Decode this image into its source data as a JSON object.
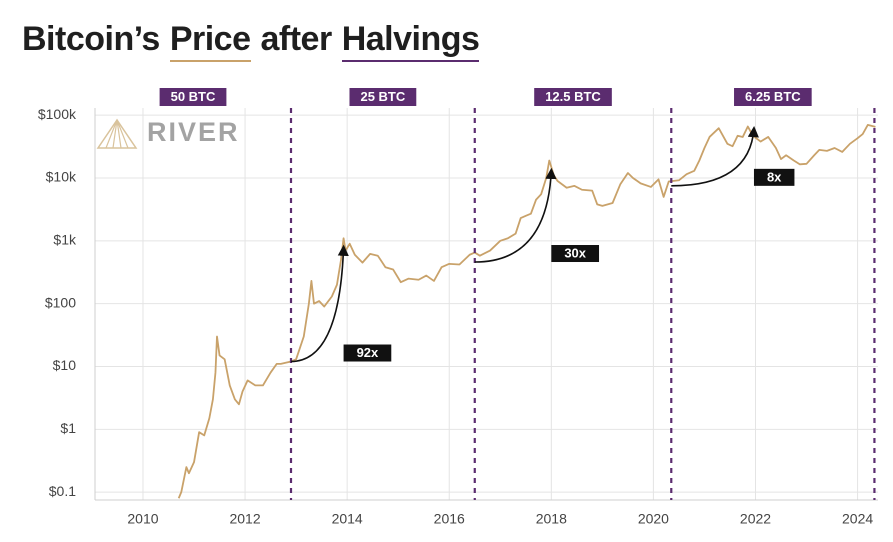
{
  "chart_data": {
    "type": "line",
    "title": [
      "Bitcoin’s",
      "Price",
      "after",
      "Halvings"
    ],
    "logo": "RIVER",
    "color": "#c9a26a",
    "log_y": true,
    "grid": true,
    "x": [
      2010.7,
      2010.75,
      2010.85,
      2010.9,
      2011.0,
      2011.1,
      2011.2,
      2011.3,
      2011.37,
      2011.42,
      2011.45,
      2011.5,
      2011.6,
      2011.7,
      2011.8,
      2011.88,
      2011.95,
      2012.05,
      2012.2,
      2012.35,
      2012.5,
      2012.62,
      2012.7,
      2012.9,
      2013.0,
      2013.15,
      2013.25,
      2013.3,
      2013.35,
      2013.45,
      2013.55,
      2013.7,
      2013.8,
      2013.88,
      2013.93,
      2013.97,
      2014.05,
      2014.15,
      2014.3,
      2014.45,
      2014.6,
      2014.75,
      2014.9,
      2015.05,
      2015.2,
      2015.4,
      2015.55,
      2015.7,
      2015.85,
      2016.0,
      2016.2,
      2016.4,
      2016.5,
      2016.6,
      2016.8,
      2017.0,
      2017.15,
      2017.3,
      2017.4,
      2017.5,
      2017.6,
      2017.7,
      2017.8,
      2017.9,
      2017.96,
      2018.05,
      2018.12,
      2018.3,
      2018.45,
      2018.6,
      2018.8,
      2018.9,
      2019.0,
      2019.2,
      2019.35,
      2019.5,
      2019.6,
      2019.75,
      2019.95,
      2020.1,
      2020.2,
      2020.3,
      2020.5,
      2020.65,
      2020.8,
      2020.9,
      2021.0,
      2021.1,
      2021.28,
      2021.45,
      2021.55,
      2021.65,
      2021.75,
      2021.85,
      2021.95,
      2022.1,
      2022.25,
      2022.4,
      2022.5,
      2022.6,
      2022.75,
      2022.87,
      2023.0,
      2023.15,
      2023.25,
      2023.4,
      2023.55,
      2023.7,
      2023.85,
      2024.0,
      2024.1,
      2024.2,
      2024.35
    ],
    "values": [
      0.08,
      0.1,
      0.25,
      0.2,
      0.3,
      0.9,
      0.8,
      1.5,
      3,
      8,
      30,
      15,
      13,
      5,
      3,
      2.5,
      4,
      6,
      5,
      5,
      8,
      11,
      11,
      12,
      13,
      30,
      100,
      230,
      100,
      110,
      90,
      130,
      200,
      500,
      1100,
      700,
      900,
      600,
      450,
      620,
      580,
      380,
      350,
      220,
      250,
      240,
      280,
      230,
      380,
      430,
      420,
      600,
      650,
      580,
      700,
      1000,
      1100,
      1300,
      2300,
      2500,
      2700,
      4500,
      5500,
      10000,
      19000,
      11000,
      9000,
      7000,
      7500,
      6500,
      6300,
      3800,
      3600,
      4000,
      7900,
      12000,
      10000,
      8200,
      7200,
      9500,
      5000,
      8800,
      9200,
      11500,
      13000,
      19000,
      30000,
      45000,
      62000,
      35000,
      32000,
      47000,
      45000,
      66000,
      47000,
      38000,
      45000,
      30000,
      20000,
      23000,
      19000,
      16500,
      16800,
      23000,
      28000,
      27000,
      30000,
      26000,
      35000,
      43000,
      50000,
      70000,
      65000
    ],
    "xlim": [
      2009.06,
      2024.4
    ],
    "xticks": [
      2010,
      2012,
      2014,
      2016,
      2018,
      2020,
      2022,
      2024
    ],
    "ylim": [
      0.075,
      130000
    ],
    "yticks": [
      {
        "value": 0.1,
        "label": "$0.1"
      },
      {
        "value": 1,
        "label": "$1"
      },
      {
        "value": 10,
        "label": "$10"
      },
      {
        "value": 100,
        "label": "$100"
      },
      {
        "value": 1000,
        "label": "$1k"
      },
      {
        "value": 10000,
        "label": "$10k"
      },
      {
        "value": 100000,
        "label": "$100k"
      }
    ],
    "halvings": [
      2012.9,
      2016.5,
      2020.35,
      2024.33
    ],
    "halving_color": "#5b2c6f",
    "eras": [
      "50 BTC",
      "25 BTC",
      "12.5 BTC",
      "6.25 BTC"
    ],
    "annotations": [
      {
        "text": "92x",
        "from": [
          2012.9,
          12
        ],
        "to": [
          2013.93,
          800
        ]
      },
      {
        "text": "30x",
        "from": [
          2016.5,
          460
        ],
        "to": [
          2018.0,
          13400
        ]
      },
      {
        "text": "8x",
        "from": [
          2020.35,
          7500
        ],
        "to": [
          2021.97,
          62000
        ]
      }
    ]
  }
}
